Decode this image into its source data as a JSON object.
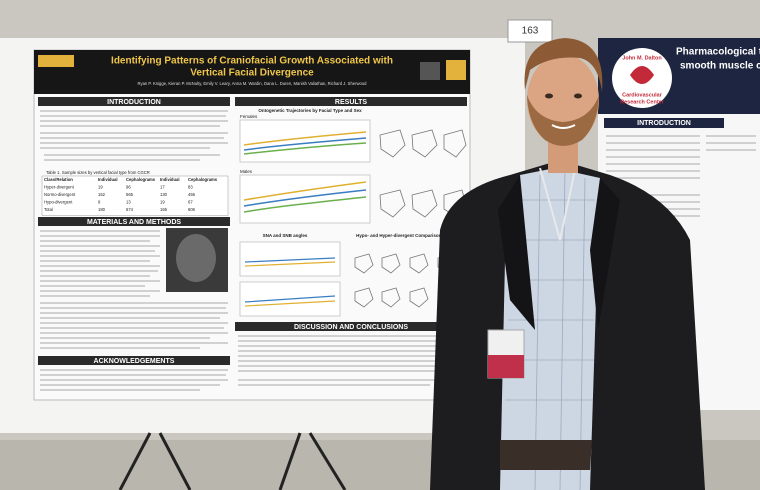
{
  "booth_number": "163",
  "poster": {
    "title_line1": "Identifying Patterns of Craniofacial Growth Associated with",
    "title_line2": "Vertical Facial Divergence",
    "authors": "Ryan P. Knigge, Kieran P. McNulty, Emily V. Leary, Anna M. Wardin, Dana L. Duren, Manish Valiathan, Richard J. Sherwood",
    "sections": {
      "introduction": "INTRODUCTION",
      "results": "RESULTS",
      "materials": "MATERIALS AND METHODS",
      "acknowledgements": "ACKNOWLEDGEMENTS",
      "discussion": "DISCUSSION AND CONCLUSIONS"
    },
    "figure_titles": {
      "trajectories": "Ontogenetic Trajectories by Facial Type and Sex",
      "females": "Females",
      "males": "Males",
      "angles": "SNA and SNB angles",
      "comparisons": "Hypo- and Hyper-divergent Comparisons"
    },
    "table": {
      "caption": "Table 1. Sample sizes by vertical facial type from CGCR",
      "header": [
        "Class/Relation",
        "Individual",
        "Cephalograms",
        "Individual",
        "Cephalograms"
      ],
      "rows": [
        [
          "Hyper-divergent",
          "19",
          "96",
          "17",
          "83"
        ],
        [
          "Normo-divergent",
          "152",
          "565",
          "130",
          "456"
        ],
        [
          "Hypo-divergent",
          "9",
          "13",
          "19",
          "67"
        ],
        [
          "Total",
          "180",
          "674",
          "166",
          "606"
        ]
      ]
    }
  },
  "neighbor_poster": {
    "title_line1": "Pharmacological targ",
    "title_line2": "smooth muscle cell sti",
    "logo_line1": "John M. Dalton",
    "logo_line2": "Cardiovascular",
    "logo_line3": "Research Center",
    "section": "INTRODUCTION"
  }
}
